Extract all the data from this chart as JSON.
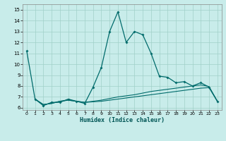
{
  "xlabel": "Humidex (Indice chaleur)",
  "xlim": [
    -0.5,
    23.5
  ],
  "ylim": [
    5.8,
    15.5
  ],
  "yticks": [
    6,
    7,
    8,
    9,
    10,
    11,
    12,
    13,
    14,
    15
  ],
  "xticks": [
    0,
    1,
    2,
    3,
    4,
    5,
    6,
    7,
    8,
    9,
    10,
    11,
    12,
    13,
    14,
    15,
    16,
    17,
    18,
    19,
    20,
    21,
    22,
    23
  ],
  "bg_color": "#c8ecea",
  "grid_color": "#a0d0c8",
  "line_color": "#006b6b",
  "line1_x": [
    0,
    1,
    2,
    3,
    4,
    5,
    6,
    7,
    8,
    9,
    10,
    11,
    12,
    13,
    14,
    15,
    16,
    17,
    18,
    19,
    20,
    21,
    22,
    23
  ],
  "line1_y": [
    11.2,
    6.8,
    6.2,
    6.5,
    6.5,
    6.8,
    6.6,
    6.4,
    7.9,
    9.7,
    13.0,
    14.8,
    12.0,
    13.0,
    12.7,
    11.0,
    8.9,
    8.8,
    8.3,
    8.4,
    8.0,
    8.3,
    7.9,
    6.6
  ],
  "line2_x": [
    1,
    2,
    3,
    4,
    5,
    6,
    7,
    8,
    9,
    10,
    11,
    12,
    13,
    14,
    15,
    16,
    17,
    18,
    19,
    20,
    21,
    22,
    23
  ],
  "line2_y": [
    6.8,
    6.3,
    6.4,
    6.6,
    6.7,
    6.6,
    6.5,
    6.6,
    6.7,
    6.85,
    7.0,
    7.1,
    7.2,
    7.35,
    7.5,
    7.6,
    7.7,
    7.8,
    7.9,
    8.0,
    8.1,
    7.95,
    6.6
  ],
  "line3_x": [
    1,
    2,
    3,
    4,
    5,
    6,
    7,
    8,
    9,
    10,
    11,
    12,
    13,
    14,
    15,
    16,
    17,
    18,
    19,
    20,
    21,
    22,
    23
  ],
  "line3_y": [
    6.8,
    6.3,
    6.4,
    6.6,
    6.7,
    6.6,
    6.5,
    6.55,
    6.6,
    6.7,
    6.8,
    6.9,
    7.0,
    7.1,
    7.2,
    7.3,
    7.4,
    7.5,
    7.6,
    7.7,
    7.8,
    7.85,
    6.6
  ]
}
